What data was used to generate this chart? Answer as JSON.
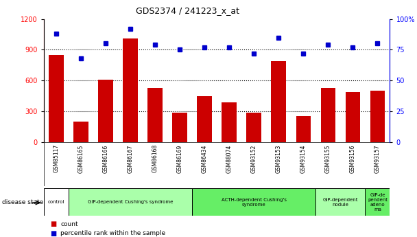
{
  "title": "GDS2374 / 241223_x_at",
  "samples": [
    "GSM85117",
    "GSM86165",
    "GSM86166",
    "GSM86167",
    "GSM86168",
    "GSM86169",
    "GSM86434",
    "GSM88074",
    "GSM93152",
    "GSM93153",
    "GSM93154",
    "GSM93155",
    "GSM93156",
    "GSM93157"
  ],
  "counts": [
    850,
    200,
    610,
    1010,
    530,
    290,
    450,
    390,
    290,
    790,
    255,
    530,
    490,
    500
  ],
  "percentiles": [
    88,
    68,
    80,
    92,
    79,
    75,
    77,
    77,
    72,
    85,
    72,
    79,
    77,
    80
  ],
  "ylim_left": [
    0,
    1200
  ],
  "ylim_right": [
    0,
    100
  ],
  "yticks_left": [
    0,
    300,
    600,
    900,
    1200
  ],
  "yticks_right": [
    0,
    25,
    50,
    75,
    100
  ],
  "bar_color": "#CC0000",
  "dot_color": "#0000CC",
  "disease_groups": [
    {
      "label": "control",
      "start": 0,
      "end": 1,
      "color": "#ffffff"
    },
    {
      "label": "GIP-dependent Cushing's syndrome",
      "start": 1,
      "end": 6,
      "color": "#aaffaa"
    },
    {
      "label": "ACTH-dependent Cushing's\nsyndrome",
      "start": 6,
      "end": 11,
      "color": "#66ee66"
    },
    {
      "label": "GIP-dependent\nnodule",
      "start": 11,
      "end": 13,
      "color": "#aaffaa"
    },
    {
      "label": "GIP-de\npendent\nadeno\nma",
      "start": 13,
      "end": 14,
      "color": "#66ee66"
    }
  ],
  "legend_count_label": "count",
  "legend_pct_label": "percentile rank within the sample",
  "disease_state_label": "disease state",
  "fig_width": 6.08,
  "fig_height": 3.45,
  "dpi": 100
}
